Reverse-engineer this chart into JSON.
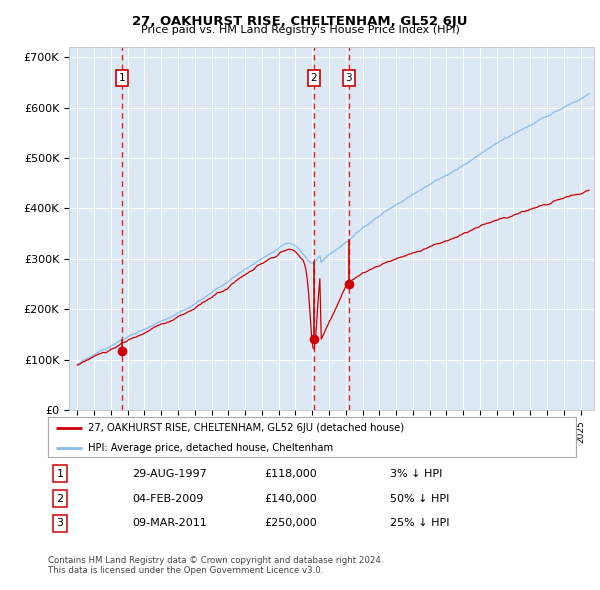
{
  "title": "27, OAKHURST RISE, CHELTENHAM, GL52 6JU",
  "subtitle": "Price paid vs. HM Land Registry's House Price Index (HPI)",
  "plot_bg_color": "#dde8f5",
  "hpi_color": "#88bbee",
  "price_color": "#cc0000",
  "vline_color_red": "#dd2222",
  "sales": [
    {
      "label": "1",
      "date_x": 1997.66,
      "price": 118000,
      "date_str": "29-AUG-1997",
      "pct_str": "3% ↓ HPI"
    },
    {
      "label": "2",
      "date_x": 2009.09,
      "price": 140000,
      "date_str": "04-FEB-2009",
      "pct_str": "50% ↓ HPI"
    },
    {
      "label": "3",
      "date_x": 2011.19,
      "price": 250000,
      "date_str": "09-MAR-2011",
      "pct_str": "25% ↓ HPI"
    }
  ],
  "legend_house_label": "27, OAKHURST RISE, CHELTENHAM, GL52 6JU (detached house)",
  "legend_hpi_label": "HPI: Average price, detached house, Cheltenham",
  "footer_line1": "Contains HM Land Registry data © Crown copyright and database right 2024.",
  "footer_line2": "This data is licensed under the Open Government Licence v3.0.",
  "ylim": [
    0,
    720000
  ],
  "xlim": [
    1994.5,
    2025.8
  ],
  "yticks": [
    0,
    100000,
    200000,
    300000,
    400000,
    500000,
    600000,
    700000
  ],
  "ytick_labels": [
    "£0",
    "£100K",
    "£200K",
    "£300K",
    "£400K",
    "£500K",
    "£600K",
    "£700K"
  ]
}
